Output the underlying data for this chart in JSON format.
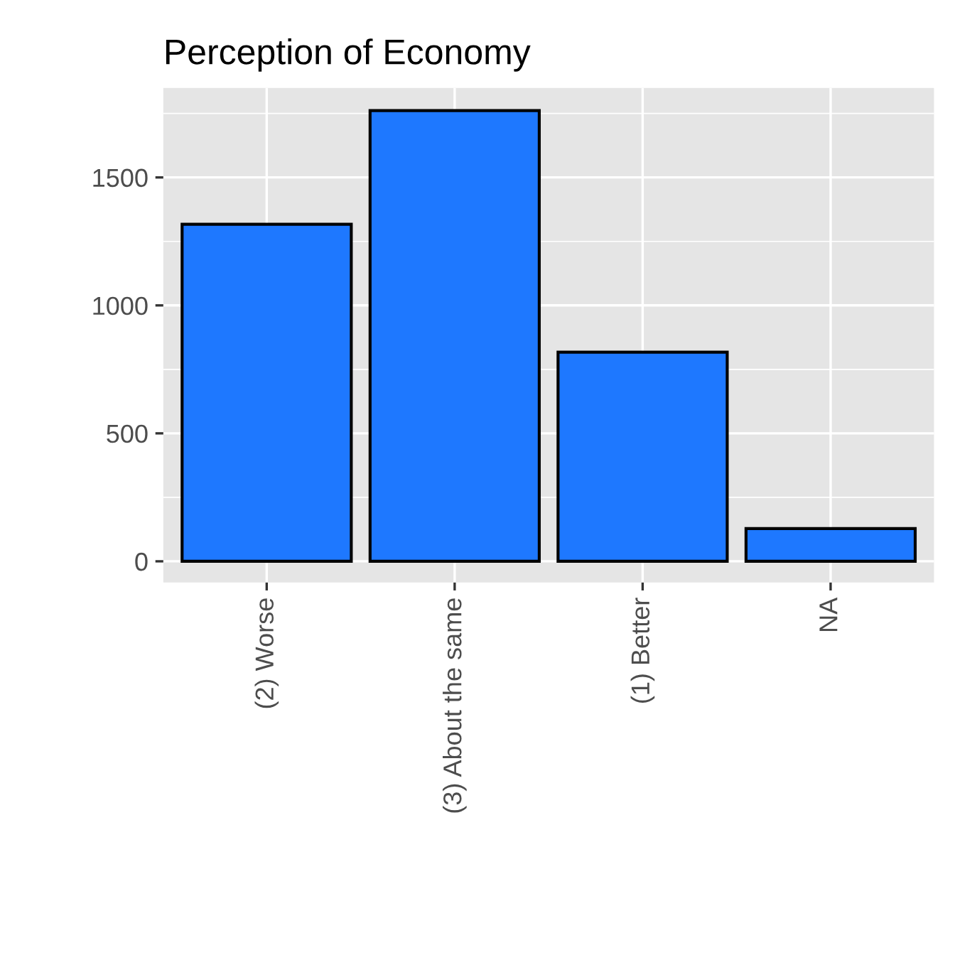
{
  "chart_data": {
    "type": "bar",
    "title": "Perception of Economy",
    "categories": [
      "(2) Worse",
      "(3) About the same",
      "(1) Better",
      "NA"
    ],
    "values": [
      1317,
      1761,
      817,
      128
    ],
    "color": "#1e78ff",
    "ylim": [
      -83,
      1850
    ],
    "yticks": [
      0,
      500,
      1000,
      1500
    ],
    "grid": true
  }
}
